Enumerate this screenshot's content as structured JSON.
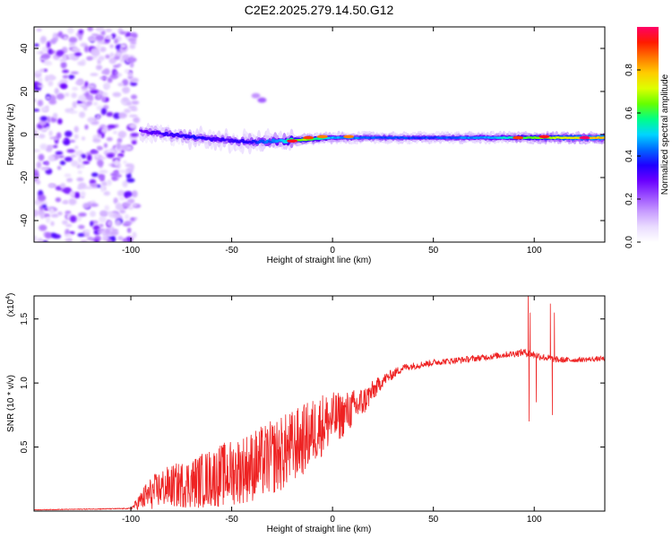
{
  "title": "C2E2.2025.279.14.50.G12",
  "chart_data": [
    {
      "type": "heatmap",
      "xlabel": "Height of straight line (km)",
      "ylabel": "Frequency (Hz)",
      "xlim": [
        -148,
        135
      ],
      "ylim": [
        -50,
        50
      ],
      "xticks": [
        -100,
        -50,
        0,
        50,
        100
      ],
      "yticks": [
        -40,
        -20,
        0,
        20,
        40
      ],
      "colorbar": {
        "label": "Normalized spectral amplitude",
        "range": [
          0,
          1
        ],
        "ticks": [
          0.0,
          0.2,
          0.4,
          0.6,
          0.8
        ],
        "colors": [
          "#ffffff",
          "#eadcff",
          "#c79bff",
          "#9a4dff",
          "#6a00ff",
          "#1f00ff",
          "#0066ff",
          "#00d5ff",
          "#00ff88",
          "#66ff00",
          "#ddff00",
          "#ffcc00",
          "#ff7700",
          "#ff1a00",
          "#ff0066"
        ]
      },
      "noise_region": {
        "x": [
          -148,
          -97
        ],
        "freq": [
          -50,
          50
        ],
        "amplitude": 0.25
      },
      "ridge": [
        {
          "x": -95,
          "freq": 1.5,
          "amp": 0.35
        },
        {
          "x": -85,
          "freq": 0.5,
          "amp": 0.4
        },
        {
          "x": -70,
          "freq": -1.0,
          "amp": 0.45
        },
        {
          "x": -55,
          "freq": -2.5,
          "amp": 0.4
        },
        {
          "x": -40,
          "freq": -3.5,
          "amp": 0.45
        },
        {
          "x": -25,
          "freq": -3.0,
          "amp": 0.6
        },
        {
          "x": -15,
          "freq": -2.5,
          "amp": 0.85
        },
        {
          "x": 0,
          "freq": -1.5,
          "amp": 0.6
        },
        {
          "x": 25,
          "freq": -1.5,
          "amp": 0.5
        },
        {
          "x": 50,
          "freq": -1.5,
          "amp": 0.5
        },
        {
          "x": 80,
          "freq": -1.5,
          "amp": 0.6
        },
        {
          "x": 100,
          "freq": -1.5,
          "amp": 0.8
        },
        {
          "x": 115,
          "freq": -1.5,
          "amp": 0.9
        },
        {
          "x": 135,
          "freq": -1.5,
          "amp": 1.0
        }
      ],
      "hotspots": [
        {
          "x": -20,
          "freq": -3.0,
          "amp": 0.95
        },
        {
          "x": -12,
          "freq": -1.5,
          "amp": 0.9
        },
        {
          "x": -5,
          "freq": -1.0,
          "amp": 0.85
        },
        {
          "x": 8,
          "freq": -1.0,
          "amp": 0.85
        },
        {
          "x": 92,
          "freq": -1.5,
          "amp": 0.9
        },
        {
          "x": 105,
          "freq": -1.0,
          "amp": 0.95
        },
        {
          "x": 125,
          "freq": -1.5,
          "amp": 1.0
        }
      ],
      "isolated_blobs": [
        {
          "x": -35,
          "freq": 16,
          "amp": 0.2
        },
        {
          "x": -38,
          "freq": 18,
          "amp": 0.15
        }
      ]
    },
    {
      "type": "line",
      "xlabel": "Height of straight line (km)",
      "ylabel": "SNR (10 * v/v)",
      "y_multiplier_label": "(x10",
      "y_multiplier_exp": "4",
      "y_multiplier_close": ")",
      "xlim": [
        -148,
        135
      ],
      "ylim": [
        0,
        1.68
      ],
      "xticks": [
        -100,
        -50,
        0,
        50,
        100
      ],
      "yticks": [
        0.5,
        1.0,
        1.5
      ],
      "series": [
        {
          "name": "SNR",
          "color": "#ee2222",
          "x": [
            -148,
            -100,
            -92,
            -85,
            -70,
            -55,
            -40,
            -25,
            -15,
            -5,
            5,
            15,
            25,
            35,
            50,
            70,
            85,
            95,
            100,
            105,
            112,
            120,
            135
          ],
          "y": [
            0.01,
            0.02,
            0.12,
            0.18,
            0.22,
            0.28,
            0.35,
            0.45,
            0.55,
            0.68,
            0.75,
            0.85,
            1.02,
            1.12,
            1.16,
            1.19,
            1.22,
            1.24,
            1.22,
            1.2,
            1.18,
            1.18,
            1.19
          ],
          "noise_amplitude": [
            0.002,
            0.004,
            0.12,
            0.15,
            0.2,
            0.25,
            0.28,
            0.3,
            0.28,
            0.25,
            0.18,
            0.12,
            0.05,
            0.03,
            0.025,
            0.025,
            0.025,
            0.03,
            0.03,
            0.03,
            0.025,
            0.02,
            0.02
          ]
        }
      ],
      "spikes": [
        {
          "x": 97,
          "y": 1.68
        },
        {
          "x": 97.5,
          "y": 0.7
        },
        {
          "x": 98,
          "y": 1.55
        },
        {
          "x": 101,
          "y": 0.85
        },
        {
          "x": 108,
          "y": 1.62
        },
        {
          "x": 109,
          "y": 0.75
        },
        {
          "x": 110,
          "y": 1.55
        }
      ]
    }
  ]
}
